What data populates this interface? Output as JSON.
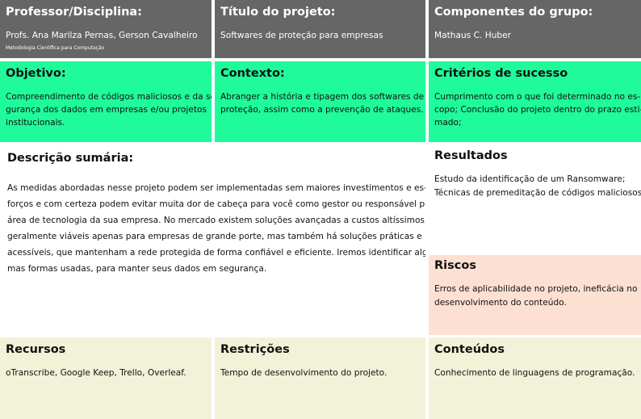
{
  "professor": {
    "title": "Professor/Disciplina:",
    "lines": [
      "Profs. Ana Marilza Pernas, Gerson Cavalheiro"
    ],
    "small": "Metodologia Científica para Computação"
  },
  "titulo": {
    "title": "Título do projeto:",
    "lines": [
      "Softwares de proteção para empresas"
    ]
  },
  "componentes": {
    "title": "Componentes do grupo:",
    "lines": [
      "Mathaus C. Huber"
    ]
  },
  "objetivo": {
    "title": "Objetivo:",
    "lines": [
      "Compreendimento de códigos maliciosos e da se-",
      "gurança dos dados em empresas e/ou projetos",
      "institucionais."
    ]
  },
  "contexto": {
    "title": "Contexto:",
    "lines": [
      "Abranger a história e tipagem dos softwares de",
      "proteção, assim como a prevenção de ataques."
    ]
  },
  "criterios": {
    "title": "Critérios de sucesso",
    "lines": [
      "Cumprimento com o que foi determinado no es-",
      "copo; Conclusão do projeto dentro do prazo esti-",
      "mado;"
    ]
  },
  "descricao": {
    "title": "Descrição sumária:",
    "lines": [
      "As medidas abordadas nesse projeto podem ser implementadas sem maiores investimentos e es-",
      "forços e com certeza podem evitar muita dor de cabeça para você como gestor ou responsável pela",
      "área de tecnologia da sua empresa.  No mercado existem soluções avançadas a custos altíssimos,",
      "geralmente viáveis apenas para empresas de grande porte, mas também há soluções práticas e",
      "acessíveis, que mantenham a rede protegida de forma confiável e eficiente.  Iremos identificar algu-",
      "mas formas usadas, para manter seus dados em segurança."
    ]
  },
  "resultados": {
    "title": "Resultados",
    "lines": [
      "Estudo da identificação de um Ransomware;",
      "Técnicas de premeditação de códigos maliciosos."
    ]
  },
  "riscos": {
    "title": "Riscos",
    "lines": [
      "Erros de aplicabilidade no projeto, ineficácia no",
      "desenvolvimento do conteúdo."
    ]
  },
  "recursos": {
    "title": "Recursos",
    "lines": [
      "oTranscribe, Google Keep, Trello, Overleaf."
    ]
  },
  "restricoes": {
    "title": "Restrições",
    "lines": [
      "Tempo de desenvolvimento do projeto."
    ]
  },
  "conteudos": {
    "title": "Conteúdos",
    "lines": [
      "Conhecimento de linguagens de programação."
    ]
  }
}
